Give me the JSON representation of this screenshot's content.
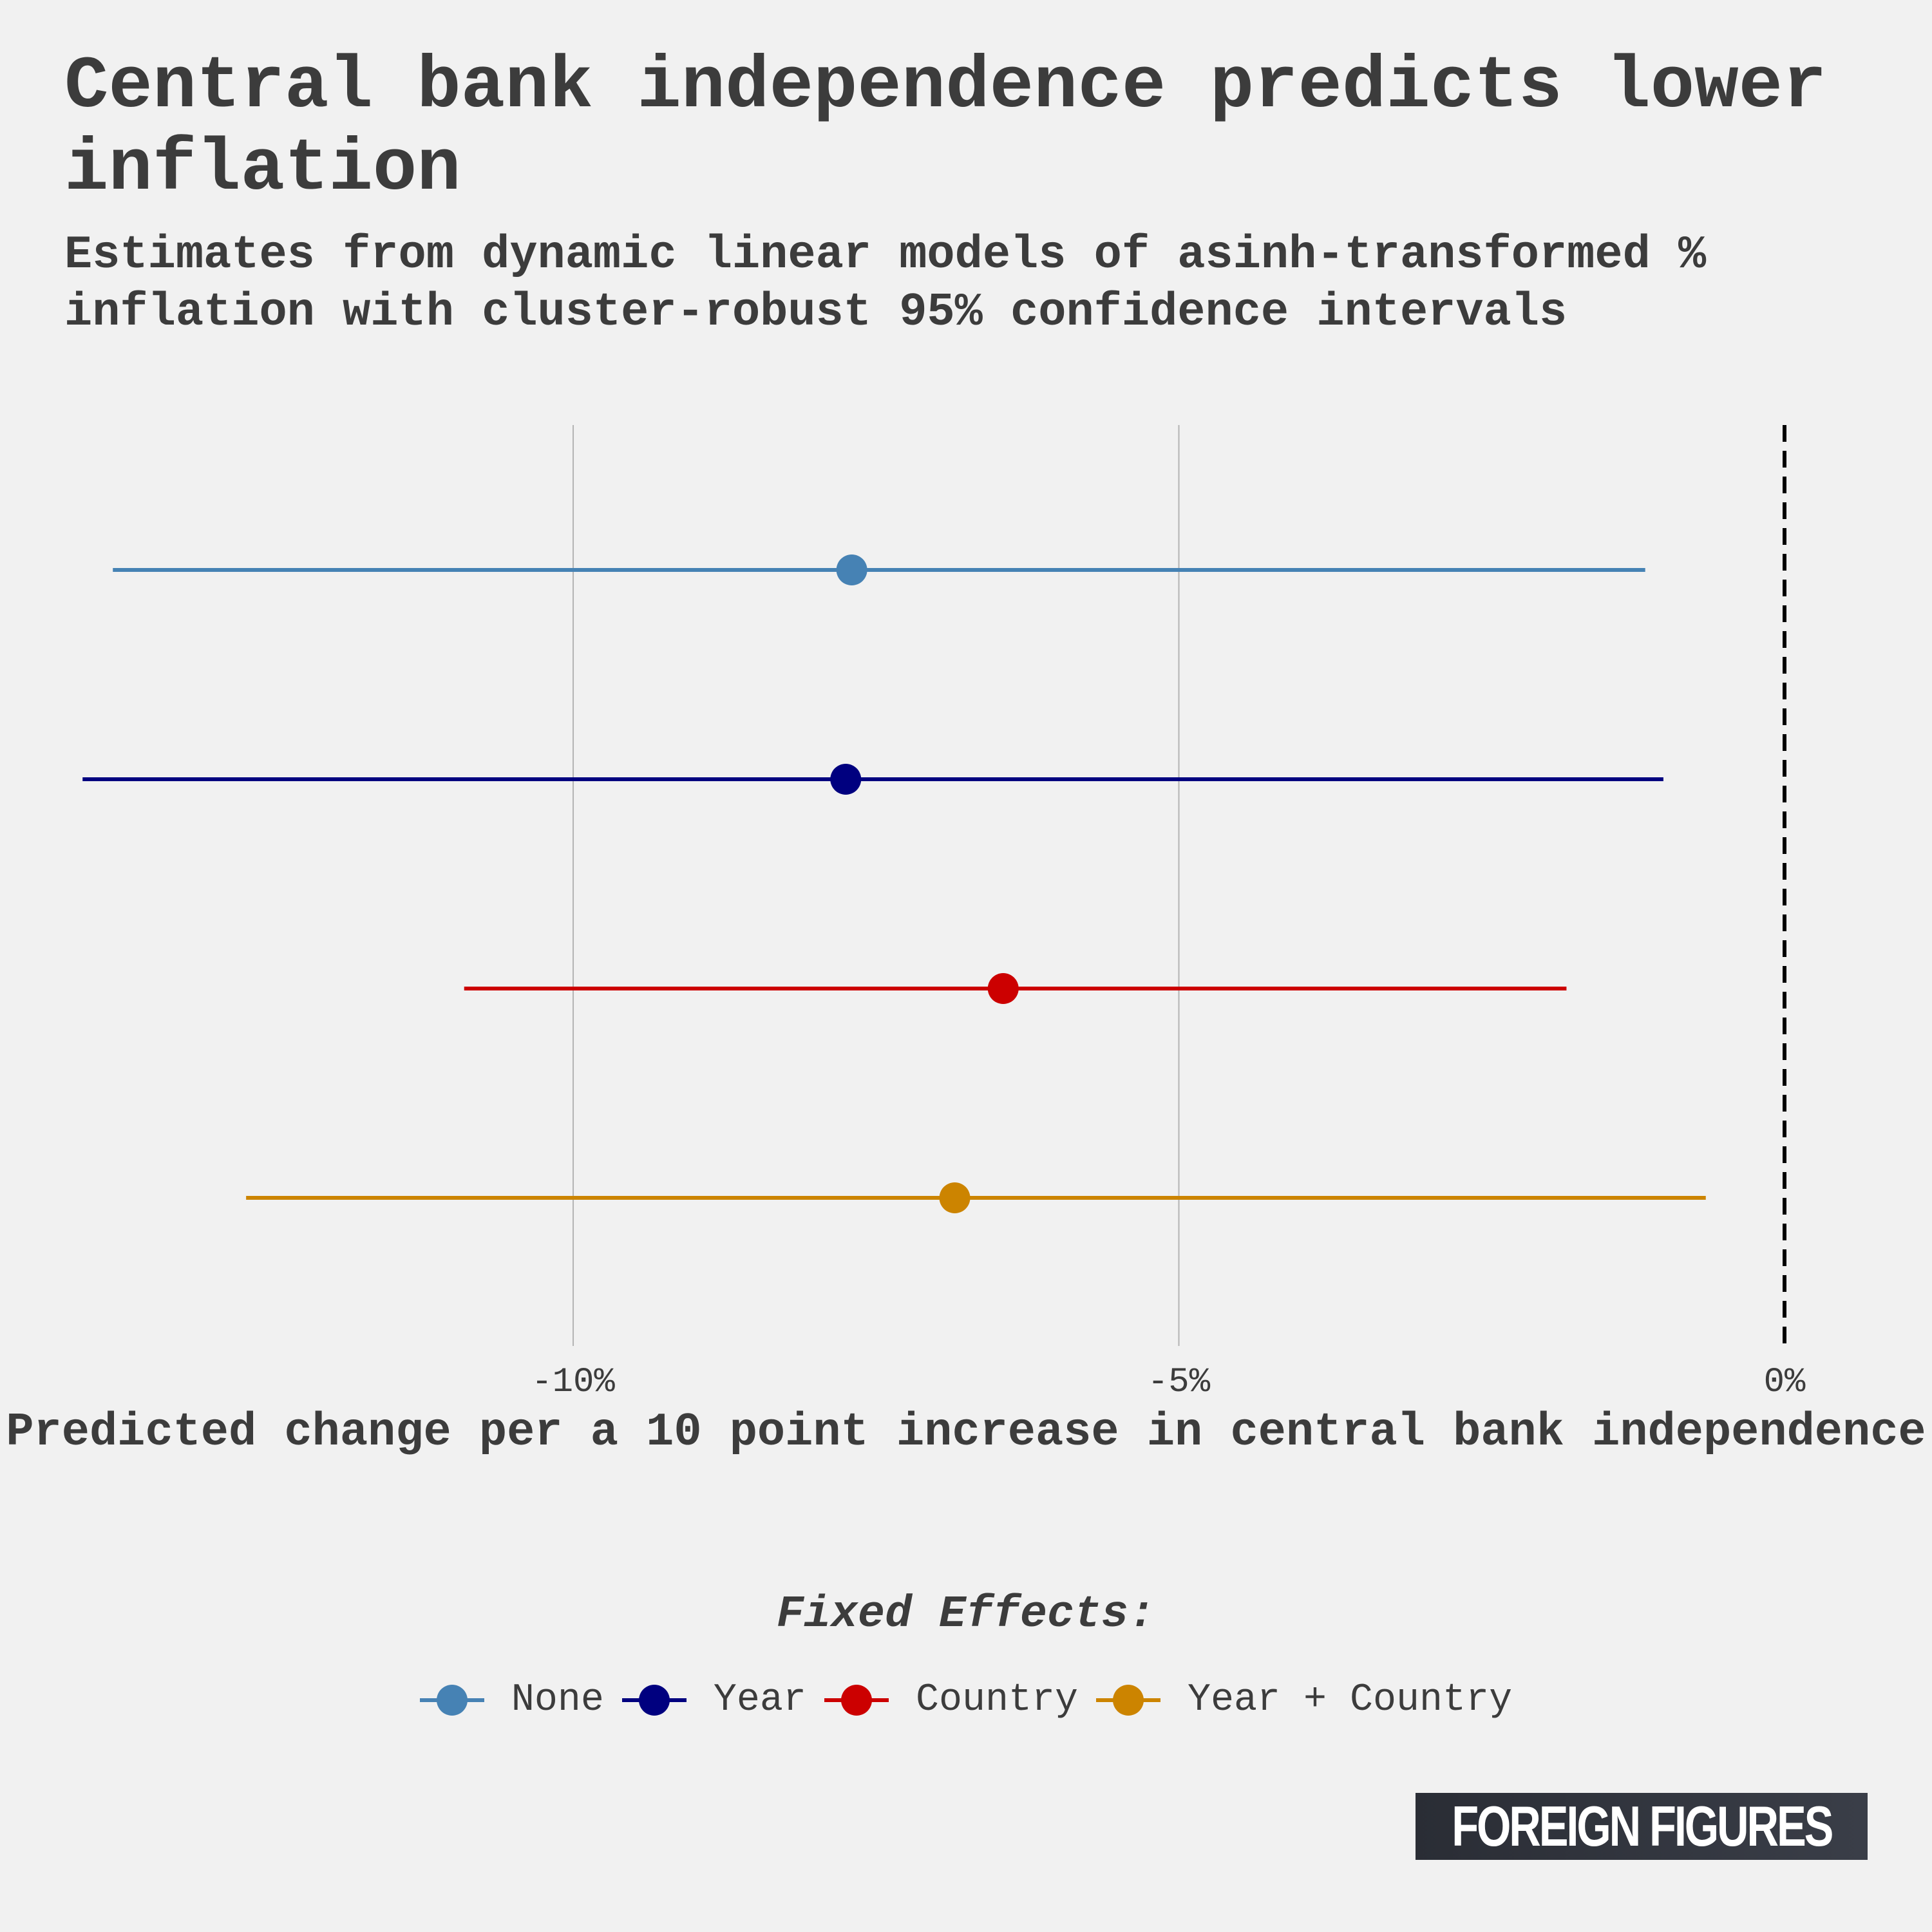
{
  "title": "Central bank independence predicts lower inflation",
  "subtitle": "Estimates from dynamic linear models of asinh-transformed % inflation with cluster-robust 95% confidence intervals",
  "logo": "FOREIGN FIGURES",
  "chart_data": {
    "type": "scatter",
    "title": "Central bank independence predicts lower inflation",
    "subtitle": "Estimates from dynamic linear models of asinh-transformed % inflation with cluster-robust 95% confidence intervals",
    "xlabel": "Predicted change per a 10 point increase in central bank independence",
    "ylabel": "",
    "xlim": [
      -14.2,
      0
    ],
    "x_ticks": [
      -10,
      -5,
      0
    ],
    "x_tick_labels": [
      "-10%",
      "-5%",
      "0%"
    ],
    "reference_line": 0,
    "grid": "vertical major gridlines",
    "legend_title": "Fixed Effects:",
    "legend_position": "bottom",
    "series": [
      {
        "name": "None",
        "color": "#4682b4",
        "estimate": -7.7,
        "ci_low": -13.8,
        "ci_high": -1.15
      },
      {
        "name": "Year",
        "color": "#00007f",
        "estimate": -7.75,
        "ci_low": -14.05,
        "ci_high": -1.0
      },
      {
        "name": "Country",
        "color": "#cc0000",
        "estimate": -6.45,
        "ci_low": -10.9,
        "ci_high": -1.8
      },
      {
        "name": "Year + Country",
        "color": "#cc8400",
        "estimate": -6.85,
        "ci_low": -12.7,
        "ci_high": -0.65
      }
    ]
  }
}
